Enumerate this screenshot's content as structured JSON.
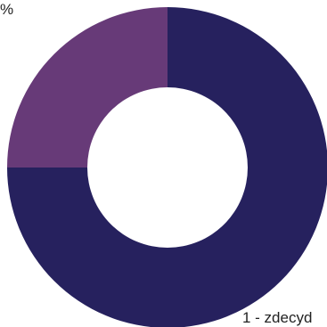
{
  "chart_data": {
    "type": "pie",
    "values": [
      75,
      25
    ],
    "colors": [
      "#26215e",
      "#673a78"
    ],
    "annotations": [
      "%",
      "1 - zdecyd"
    ]
  }
}
